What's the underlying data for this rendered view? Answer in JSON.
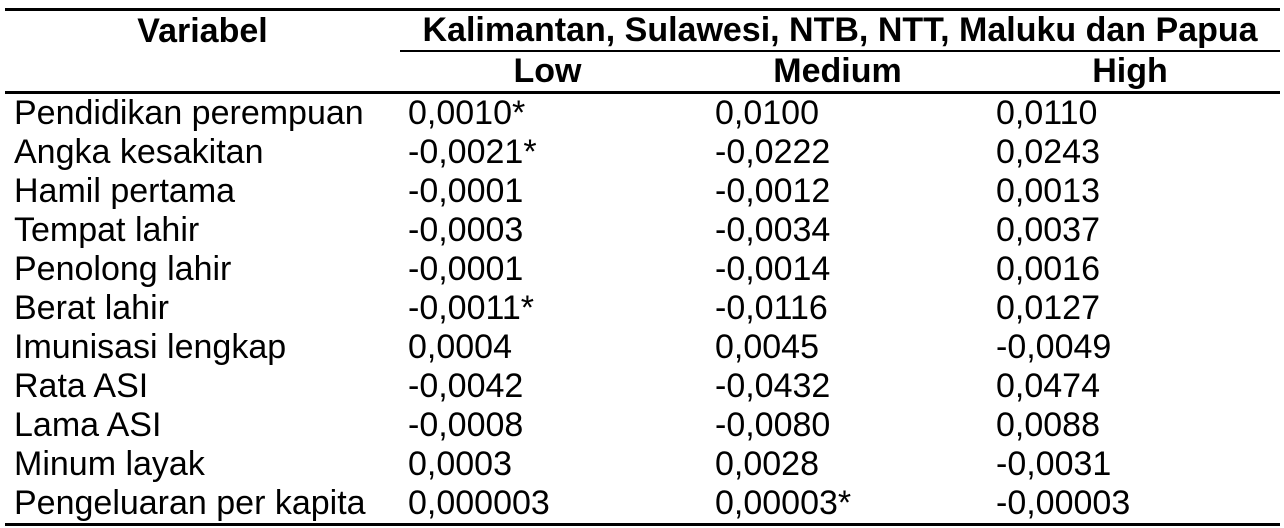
{
  "table": {
    "col1_header": "Variabel",
    "group_header": "Kalimantan, Sulawesi, NTB, NTT, Maluku dan Papua",
    "sub_headers": [
      "Low",
      "Medium",
      "High"
    ],
    "rows": [
      {
        "label": "Pendidikan perempuan",
        "values": [
          "0,0010*",
          "0,0100",
          "0,0110"
        ],
        "bold": [
          true,
          true,
          true
        ]
      },
      {
        "label": "Angka kesakitan",
        "values": [
          "-0,0021*",
          "-0,0222",
          "0,0243"
        ],
        "bold": [
          true,
          true,
          true
        ]
      },
      {
        "label": "Hamil pertama",
        "values": [
          "-0,0001",
          "-0,0012",
          "0,0013"
        ],
        "bold": [
          false,
          false,
          false
        ]
      },
      {
        "label": "Tempat lahir",
        "values": [
          "-0,0003",
          "-0,0034",
          "0,0037"
        ],
        "bold": [
          false,
          false,
          false
        ]
      },
      {
        "label": "Penolong lahir",
        "values": [
          "-0,0001",
          "-0,0014",
          "0,0016"
        ],
        "bold": [
          false,
          false,
          false
        ]
      },
      {
        "label": "Berat lahir",
        "values": [
          "-0,0011*",
          "-0,0116",
          "0,0127"
        ],
        "bold": [
          true,
          true,
          true
        ]
      },
      {
        "label": "Imunisasi lengkap",
        "values": [
          "0,0004",
          "0,0045",
          "-0,0049"
        ],
        "bold": [
          false,
          false,
          false
        ]
      },
      {
        "label": "Rata ASI",
        "values": [
          "-0,0042",
          "-0,0432",
          "0,0474"
        ],
        "bold": [
          false,
          false,
          false
        ]
      },
      {
        "label": "Lama ASI",
        "values": [
          "-0,0008",
          "-0,0080",
          "0,0088"
        ],
        "bold": [
          false,
          false,
          false
        ]
      },
      {
        "label": "Minum layak",
        "values": [
          "0,0003",
          "0,0028",
          "-0,0031"
        ],
        "bold": [
          false,
          false,
          false
        ]
      },
      {
        "label": "Pengeluaran per kapita",
        "values": [
          "0,000003",
          "0,00003*",
          "-0,00003"
        ],
        "bold": [
          false,
          true,
          true
        ]
      }
    ]
  }
}
